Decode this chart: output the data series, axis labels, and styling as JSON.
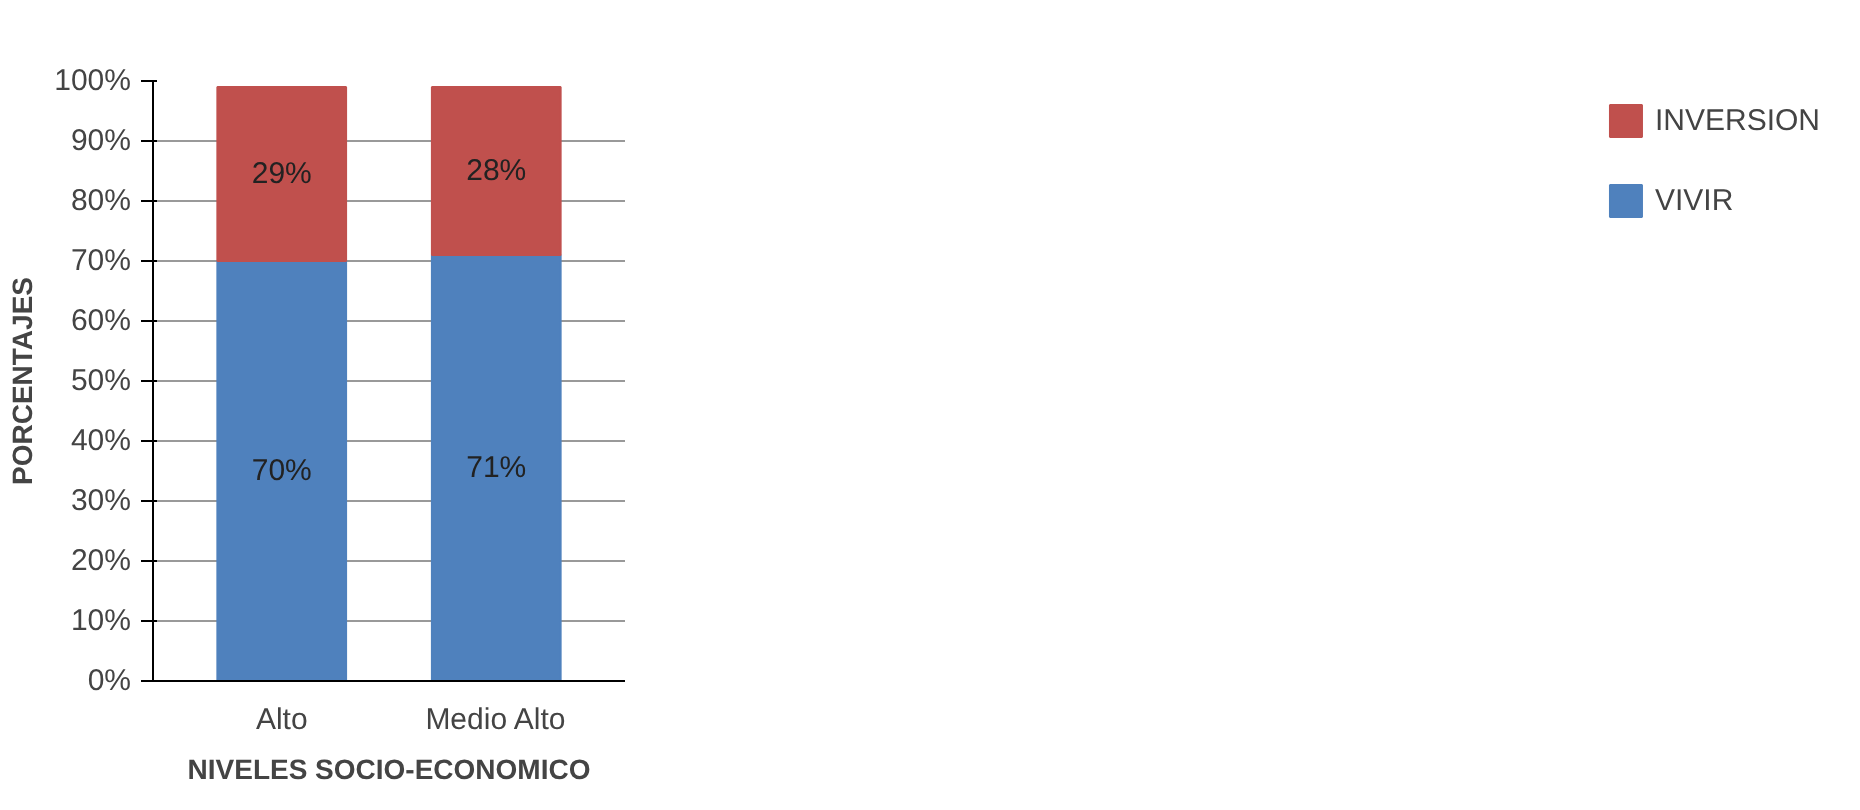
{
  "chart_data": {
    "type": "bar",
    "stacked": true,
    "xlabel": "NIVELES SOCIO-ECONOMICO",
    "ylabel": "PORCENTAJES",
    "categories": [
      "Alto",
      "Medio Alto"
    ],
    "series": [
      {
        "name": "VIVIR",
        "color": "#4f81bd",
        "values": [
          70,
          71
        ],
        "value_labels": [
          "70%",
          "71%"
        ]
      },
      {
        "name": "INVERSION",
        "color": "#c0504d",
        "values": [
          29,
          28
        ],
        "value_labels": [
          "29%",
          "28%"
        ]
      }
    ],
    "ylim": [
      0,
      100
    ],
    "yticks": [
      {
        "value": 0,
        "label": "0%"
      },
      {
        "value": 10,
        "label": "10%"
      },
      {
        "value": 20,
        "label": "20%"
      },
      {
        "value": 30,
        "label": "30%"
      },
      {
        "value": 40,
        "label": "40%"
      },
      {
        "value": 50,
        "label": "50%"
      },
      {
        "value": 60,
        "label": "60%"
      },
      {
        "value": 70,
        "label": "70%"
      },
      {
        "value": 80,
        "label": "80%"
      },
      {
        "value": 90,
        "label": "90%"
      },
      {
        "value": 100,
        "label": "100%"
      }
    ],
    "grid": "y",
    "legend": "right"
  }
}
